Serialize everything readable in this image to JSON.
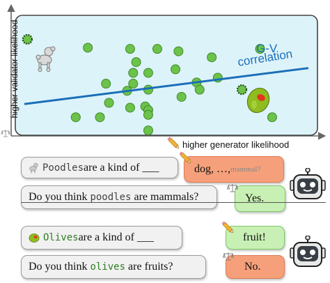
{
  "chart_data": {
    "type": "scatter",
    "xlabel": "higher generator likelihood",
    "ylabel": "higher validator likelihood",
    "trend_label": [
      "G-V",
      "correlation"
    ],
    "grid": false,
    "points": [
      {
        "x": 0.24,
        "y": 0.73
      },
      {
        "x": 0.38,
        "y": 0.72
      },
      {
        "x": 0.47,
        "y": 0.72
      },
      {
        "x": 0.54,
        "y": 0.7
      },
      {
        "x": 0.4,
        "y": 0.61
      },
      {
        "x": 0.65,
        "y": 0.65
      },
      {
        "x": 0.81,
        "y": 0.72
      },
      {
        "x": 0.53,
        "y": 0.55
      },
      {
        "x": 0.39,
        "y": 0.52
      },
      {
        "x": 0.44,
        "y": 0.52
      },
      {
        "x": 0.67,
        "y": 0.48
      },
      {
        "x": 0.3,
        "y": 0.43
      },
      {
        "x": 0.39,
        "y": 0.43
      },
      {
        "x": 0.6,
        "y": 0.44
      },
      {
        "x": 0.37,
        "y": 0.37
      },
      {
        "x": 0.44,
        "y": 0.38
      },
      {
        "x": 0.55,
        "y": 0.32
      },
      {
        "x": 0.61,
        "y": 0.38
      },
      {
        "x": 0.31,
        "y": 0.27
      },
      {
        "x": 0.43,
        "y": 0.24
      },
      {
        "x": 0.38,
        "y": 0.23
      },
      {
        "x": 0.44,
        "y": 0.21
      },
      {
        "x": 0.2,
        "y": 0.15
      },
      {
        "x": 0.28,
        "y": 0.15
      },
      {
        "x": 0.44,
        "y": 0.17
      },
      {
        "x": 0.85,
        "y": 0.15
      },
      {
        "x": 0.44,
        "y": 0.04
      }
    ],
    "highlighted_points": [
      {
        "name": "poodle",
        "x": 0.04,
        "y": 0.8
      },
      {
        "name": "olive",
        "x": 0.75,
        "y": 0.38
      }
    ],
    "trend_line": {
      "x": [
        0.03,
        0.97
      ],
      "y": [
        0.26,
        0.56
      ]
    },
    "point_color": "#6cc24a",
    "trend_color": "#1a6fb8",
    "background_color": "#ddf3fa"
  },
  "dialog": {
    "poodle": {
      "q1": {
        "word": "Poodles",
        "rest": " are a kind of ___"
      },
      "a1": {
        "text": "dog, …, ",
        "faded": "mammal?"
      },
      "q2": {
        "pre": "Do you think ",
        "word": "poodles",
        "post": " are mammals?"
      },
      "a2": {
        "text": "Yes."
      }
    },
    "olive": {
      "q1": {
        "word": "Olives",
        "rest": " are a kind of ___"
      },
      "a1": {
        "text": "fruit!"
      },
      "q2": {
        "pre": "Do you think ",
        "word": "olives",
        "post": " are fruits?"
      },
      "a2": {
        "text": "No."
      }
    }
  },
  "icons": [
    "pencil-icon",
    "scale-icon",
    "robot-icon",
    "poodle-icon",
    "olive-icon"
  ],
  "colors": {
    "generator": "#f5a07a",
    "validator": "#c8f0b4",
    "query": "#f1f1f1"
  }
}
